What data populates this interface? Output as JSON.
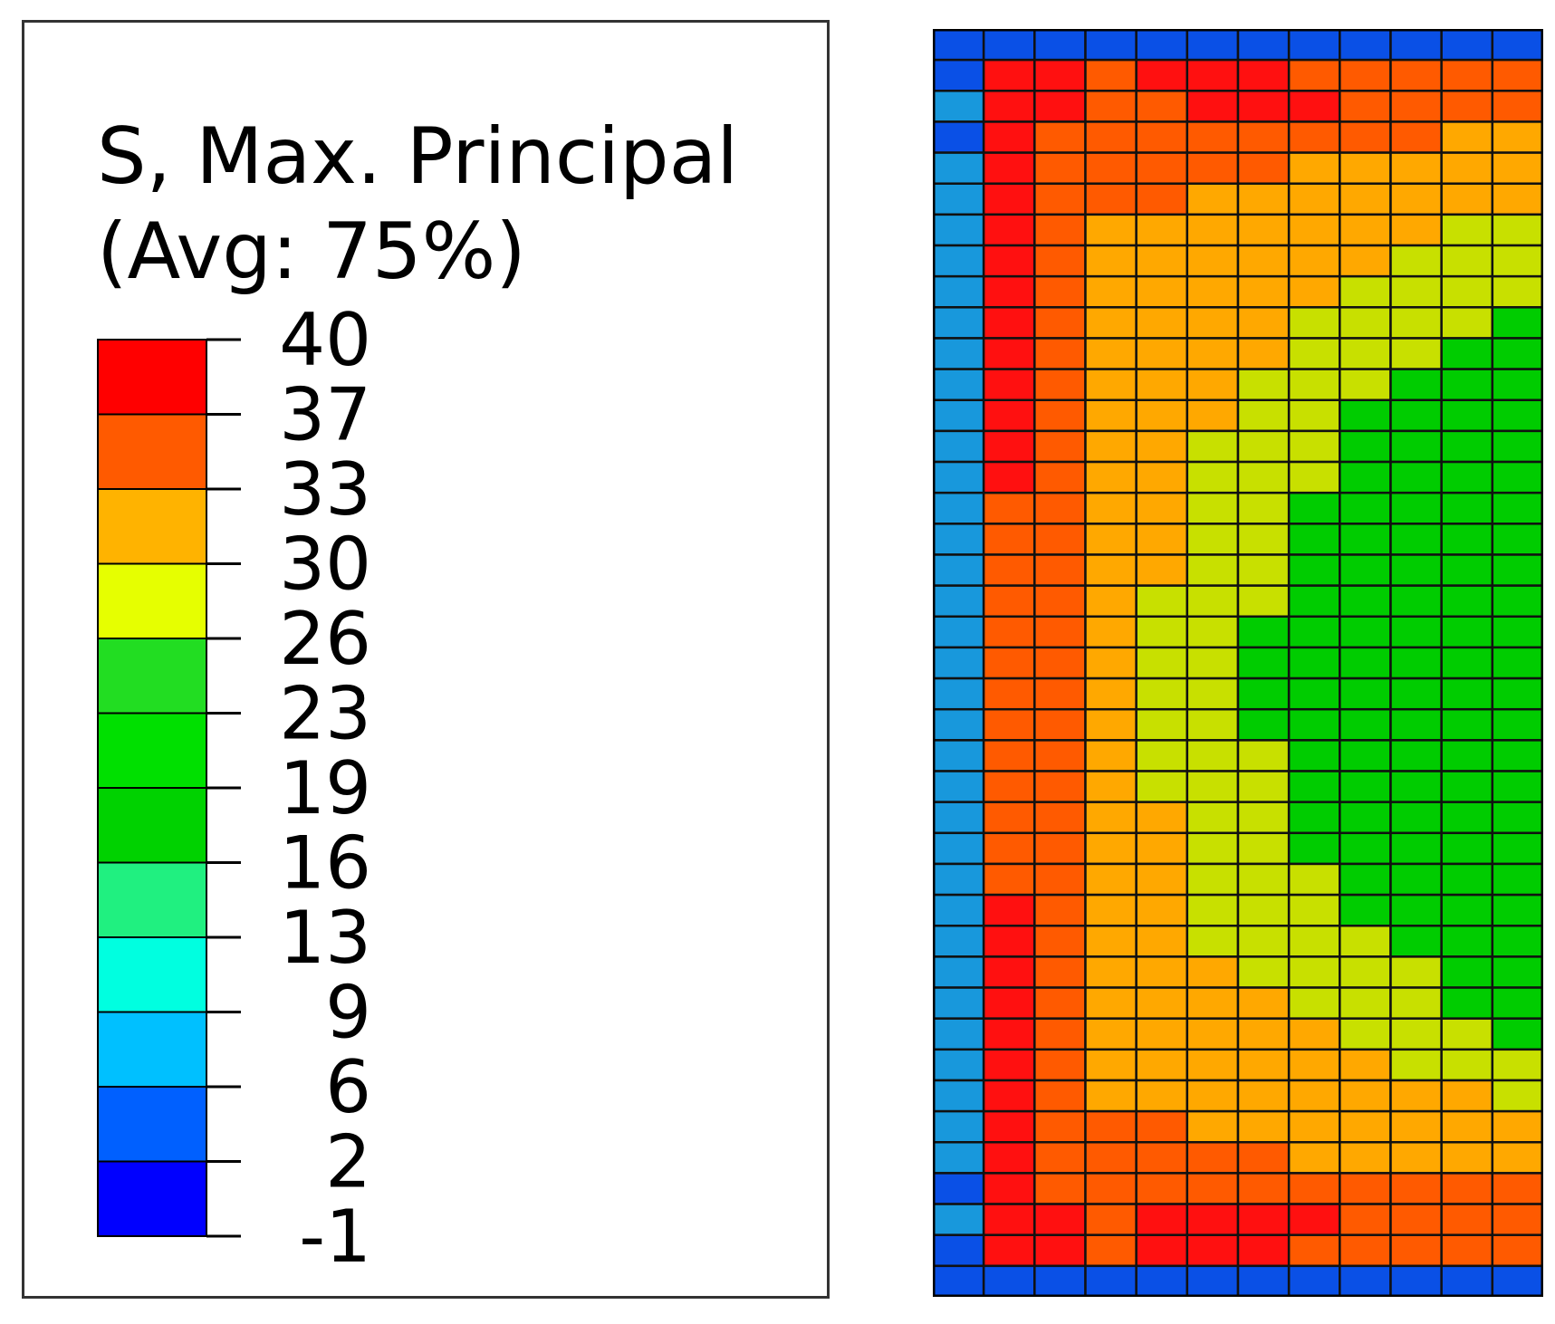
{
  "legend": {
    "title_line1": "S, Max. Principal",
    "title_line2": "(Avg: 75%)",
    "tick_labels": [
      "40",
      "37",
      "33",
      "30",
      "26",
      "23",
      "19",
      "16",
      "13",
      "9",
      "6",
      "2",
      "-1"
    ],
    "band_colors": [
      "#ff0000",
      "#ff5a00",
      "#ffb300",
      "#e6ff00",
      "#22dd22",
      "#00e000",
      "#00d200",
      "#20f080",
      "#00ffe0",
      "#00c0ff",
      "#0060ff",
      "#0000ff"
    ]
  },
  "mesh": {
    "rows": 41,
    "cols": 12,
    "colors": {
      "db": "#0a50e6",
      "lb": "#1898dc",
      "R": "#ff1010",
      "O": "#ff5a00",
      "A": "#ffa800",
      "Y": "#c8e000",
      "G": "#00cc00"
    },
    "row_codes": [
      "dbdbdbdbdbdbdbdbdbdbdbdb",
      "db R R O R R R O O O O O",
      "lb R R O O R R R O O O O",
      "db R O O O O O O O O A A",
      "lb R O O O O O A A A A A",
      "lb R O O O A A A A A A A",
      "lb R O A A A A A A A Y Y",
      "lb R O A A A A A A Y Y Y",
      "lb R O A A A A A Y Y Y Y",
      "lb R O A A A A Y Y Y Y G",
      "lb R O A A A A Y Y Y G G",
      "lb R O A A A Y Y Y G G G",
      "lb R O A A A Y Y G G G G",
      "lb R O A A Y Y Y G G G G",
      "lb R O A A Y Y Y G G G G",
      "lb O O A A Y Y G G G G G",
      "lb O O A A Y Y G G G G G",
      "lb O O A A Y Y G G G G G",
      "lb O O A Y Y Y G G G G G",
      "lb O O A Y Y G G G G G G",
      "lb O O A Y Y G G G G G G",
      "lb O O A Y Y G G G G G G",
      "lb O O A Y Y G G G G G G",
      "lb O O A Y Y Y G G G G G",
      "lb O O A Y Y Y G G G G G",
      "lb O O A A Y Y G G G G G",
      "lb O O A A Y Y G G G G G",
      "lb O O A A Y Y Y G G G G",
      "lb R O A A Y Y Y G G G G",
      "lb R O A A Y Y Y Y G G G",
      "lb R O A A A Y Y Y Y G G",
      "lb R O A A A A Y Y Y G G",
      "lb R O A A A A A Y Y Y G",
      "lb R O A A A A A A Y Y Y",
      "lb R O A A A A A A A A Y",
      "lb R O O O A A A A A A A",
      "lb R O O O O O A A A A A",
      "db R O O O O O O O O O O",
      "lb R R O R R R R O O O O",
      "db R R O R R R O O O O O",
      "dbdbdbdbdbdbdbdbdbdbdbdb"
    ]
  }
}
